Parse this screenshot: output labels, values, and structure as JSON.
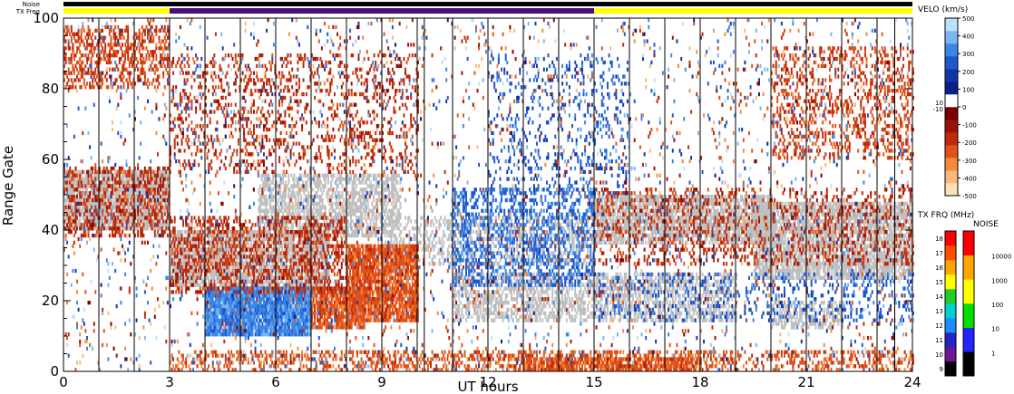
{
  "chart_data": {
    "type": "heatmap",
    "xlabel": "UT hours",
    "ylabel": "Range Gate",
    "xlim": [
      0,
      24
    ],
    "ylim": [
      0,
      100
    ],
    "x_ticks": [
      "0",
      "3",
      "6",
      "9",
      "12",
      "15",
      "18",
      "21",
      "24"
    ],
    "y_ticks": [
      "0",
      "20",
      "40",
      "60",
      "80",
      "100"
    ],
    "scan_boundaries_ut": [
      1,
      2,
      3,
      4,
      5,
      6,
      7,
      8,
      9,
      10,
      10.2,
      11,
      12,
      13,
      14,
      15,
      16,
      17,
      18,
      19,
      20,
      21,
      22,
      23,
      23.5
    ],
    "top_bars": {
      "noise_label": "Noise",
      "txfreq_label": "TX Freq",
      "txfreq_segments": [
        {
          "start": 0,
          "end": 3,
          "color": "#ffff00"
        },
        {
          "start": 3,
          "end": 15,
          "color": "#4b0d7a"
        },
        {
          "start": 15,
          "end": 24,
          "color": "#ffff00"
        }
      ]
    },
    "ground_scatter_color": "#c0c0c0",
    "features": [
      {
        "kind": "ground",
        "t0": 0,
        "t1": 3,
        "r0": 40,
        "r1": 57,
        "density": 0.85
      },
      {
        "kind": "ground",
        "t0": 3,
        "t1": 7.5,
        "r0": 24,
        "r1": 40,
        "density": 0.8
      },
      {
        "kind": "ground",
        "t0": 5.5,
        "t1": 9.5,
        "r0": 38,
        "r1": 56,
        "density": 0.6
      },
      {
        "kind": "ground",
        "t0": 15,
        "t1": 20,
        "r0": 36,
        "r1": 50,
        "density": 0.75
      },
      {
        "kind": "ground",
        "t0": 19.5,
        "t1": 24,
        "r0": 26,
        "r1": 48,
        "density": 0.75
      },
      {
        "kind": "ground",
        "t0": 11,
        "t1": 19,
        "r0": 14,
        "r1": 28,
        "density": 0.5
      },
      {
        "kind": "ground",
        "t0": 20,
        "t1": 22,
        "r0": 12,
        "r1": 20,
        "density": 0.5
      },
      {
        "kind": "ground",
        "t0": 9,
        "t1": 15,
        "r0": 30,
        "r1": 44,
        "density": 0.35
      },
      {
        "kind": "vel",
        "t0": 4,
        "t1": 7,
        "r0": 10,
        "r1": 24,
        "v": 250,
        "density": 0.95
      },
      {
        "kind": "vel",
        "t0": 7,
        "t1": 8.5,
        "r0": 12,
        "r1": 24,
        "v": -250,
        "density": 0.8
      },
      {
        "kind": "vel",
        "t0": 8,
        "t1": 10,
        "r0": 14,
        "r1": 36,
        "v": -250,
        "density": 0.85
      },
      {
        "kind": "vel",
        "t0": 0,
        "t1": 3,
        "r0": 38,
        "r1": 58,
        "v": -150,
        "density": 0.35
      },
      {
        "kind": "vel",
        "t0": 0,
        "t1": 3,
        "r0": 80,
        "r1": 98,
        "v": -200,
        "density": 0.4
      },
      {
        "kind": "vel",
        "t0": 3,
        "t1": 8,
        "r0": 22,
        "r1": 44,
        "v": -150,
        "density": 0.35
      },
      {
        "kind": "vel",
        "t0": 11,
        "t1": 15,
        "r0": 24,
        "r1": 52,
        "v": 200,
        "density": 0.35
      },
      {
        "kind": "vel",
        "t0": 12,
        "t1": 16,
        "r0": 50,
        "r1": 90,
        "v": 150,
        "density": 0.12
      },
      {
        "kind": "vel",
        "t0": 15,
        "t1": 24,
        "r0": 30,
        "r1": 52,
        "v": -150,
        "density": 0.2
      },
      {
        "kind": "vel",
        "t0": 15,
        "t1": 24,
        "r0": 14,
        "r1": 28,
        "v": 150,
        "density": 0.15
      },
      {
        "kind": "vel",
        "t0": 3,
        "t1": 10,
        "r0": 56,
        "r1": 90,
        "v": -150,
        "density": 0.18
      },
      {
        "kind": "vel",
        "t0": 20,
        "t1": 24,
        "r0": 60,
        "r1": 92,
        "v": -200,
        "density": 0.25
      },
      {
        "kind": "vel",
        "t0": 3,
        "t1": 24,
        "r0": 0,
        "r1": 6,
        "v": -250,
        "density": 0.35
      },
      {
        "kind": "vel",
        "t0": 13,
        "t1": 18,
        "r0": 0,
        "r1": 4,
        "v": -250,
        "density": 0.7
      },
      {
        "kind": "vel",
        "t0": 0,
        "t1": 24,
        "r0": 0,
        "r1": 100,
        "v": 0,
        "density": 0.05
      }
    ]
  },
  "velocity_legend": {
    "title": "VELO (km/s)",
    "ticks_pos": [
      "500",
      "400",
      "300",
      "200",
      "100",
      "0"
    ],
    "ticks_neg": [
      "-100",
      "-200",
      "-300",
      "-400",
      "-500"
    ],
    "small_labels": [
      "10",
      "-10"
    ],
    "colors": [
      "#fde0b8",
      "#f9b978",
      "#f48a3c",
      "#e0521a",
      "#c02a0a",
      "#9a1106",
      "#780000",
      "#ffffff",
      "#0a1f88",
      "#1036a8",
      "#1f57cf",
      "#3c86e6",
      "#7ab7f0",
      "#bde0fa"
    ]
  },
  "txfreq_legend": {
    "title": "TX FRQ (MHz)",
    "ticks": [
      "18",
      "17",
      "16",
      "15",
      "14",
      "13",
      "12",
      "11",
      "10",
      "9"
    ],
    "colors": [
      "#000000",
      "#6e1796",
      "#2424c8",
      "#1e8cff",
      "#00d2d2",
      "#24cc24",
      "#ffff00",
      "#ffa500",
      "#ff5000",
      "#ff0000"
    ]
  },
  "noise_legend": {
    "title": "NOISE",
    "ticks": [
      "10000",
      "1000",
      "100",
      "10",
      "1"
    ],
    "colors": [
      "#000000",
      "#2424ff",
      "#00e000",
      "#ffff00",
      "#ffa500",
      "#ff0000"
    ]
  }
}
